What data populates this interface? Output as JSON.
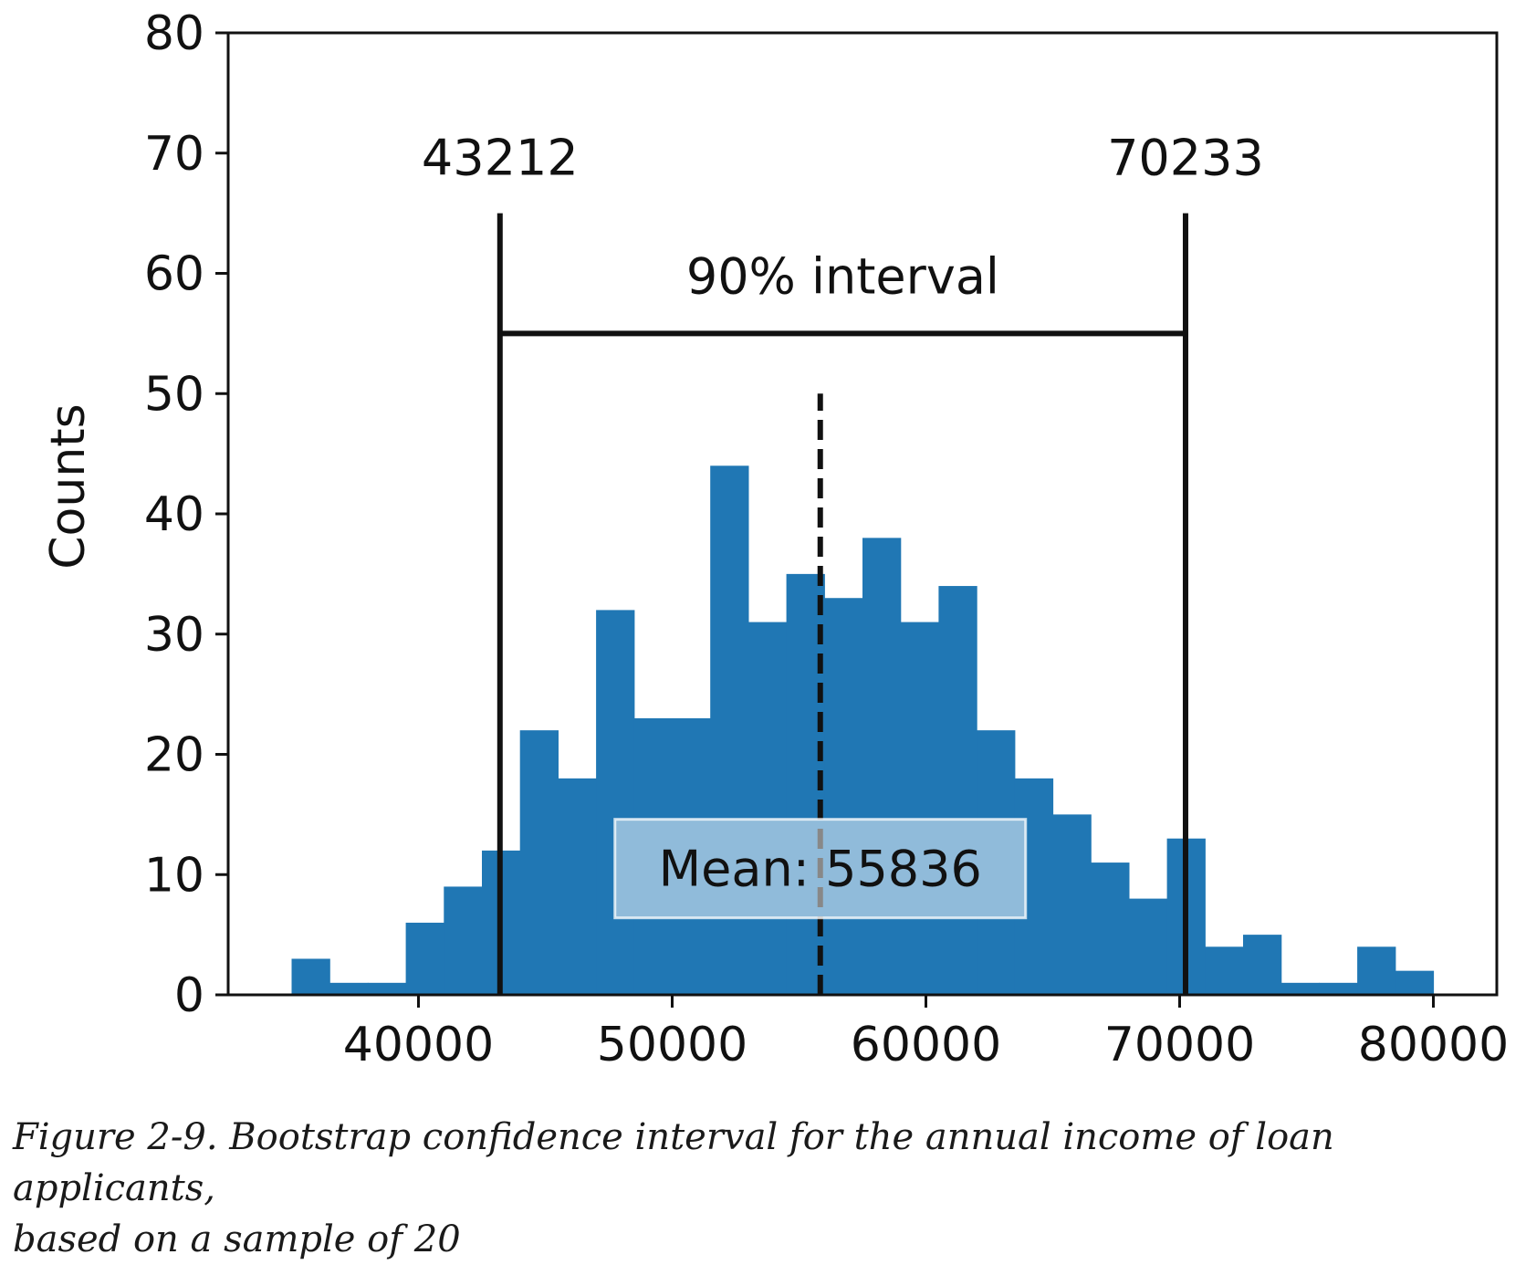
{
  "chart_data": {
    "type": "bar",
    "title": "",
    "xlabel": "",
    "ylabel": "Counts",
    "xlim": [
      32500,
      82500
    ],
    "ylim": [
      0,
      80
    ],
    "xticks": [
      40000,
      50000,
      60000,
      70000,
      80000
    ],
    "yticks": [
      0,
      10,
      20,
      30,
      40,
      50,
      60,
      70,
      80
    ],
    "bar_color": "#2077b4",
    "bins": {
      "start": 35000,
      "width": 1500,
      "counts": [
        3,
        1,
        1,
        6,
        9,
        12,
        22,
        18,
        32,
        23,
        23,
        44,
        31,
        35,
        33,
        38,
        31,
        34,
        22,
        18,
        15,
        11,
        8,
        13,
        4,
        5,
        1,
        1,
        4,
        2
      ]
    },
    "interval": {
      "lower": 43212,
      "upper": 70233,
      "lower_label": "43212",
      "upper_label": "70233",
      "label": "90% interval",
      "bracket_y": 55,
      "line_top": 65
    },
    "mean": {
      "value": 55836,
      "label": "Mean: 55836",
      "line_top": 50
    }
  },
  "caption": {
    "line1": "Figure 2-9. Bootstrap confidence interval for the annual income of loan applicants,",
    "line2": "based on a sample of 20"
  }
}
